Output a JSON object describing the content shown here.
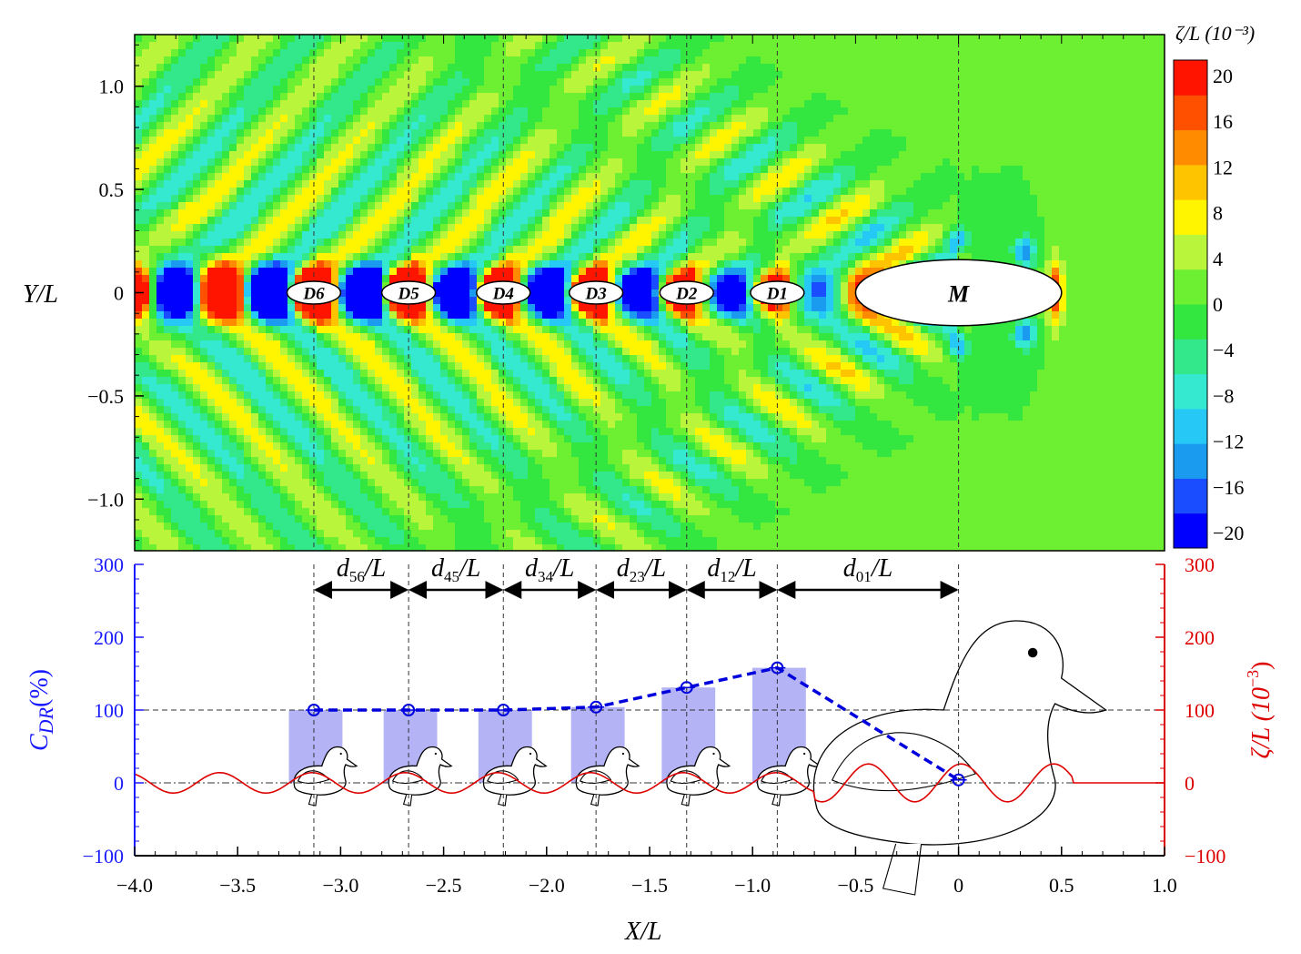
{
  "chart_data": [
    {
      "type": "heatmap",
      "title": "",
      "xlabel": "",
      "ylabel": "Y/L",
      "xlim": [
        -4.0,
        1.0
      ],
      "ylim": [
        -1.25,
        1.25
      ],
      "yticks": [
        1.0,
        0.5,
        0,
        -0.5,
        -1.0
      ],
      "ytick_labels": [
        "1.0",
        "0.5",
        "0",
        "−0.5",
        "−1.0"
      ],
      "colorbar": {
        "label": "ζ/L (10⁻³)",
        "range": [
          -20,
          20
        ],
        "levels": [
          20,
          16,
          12,
          8,
          4,
          0,
          -4,
          -8,
          -12,
          -16,
          -20
        ],
        "level_labels": [
          "20",
          "16",
          "12",
          "8",
          "4",
          "0",
          "−4",
          "−8",
          "−12",
          "−16",
          "−20"
        ],
        "colors": [
          "#0000ff",
          "#1a4dff",
          "#1a9bf0",
          "#26c8f5",
          "#35e8d0",
          "#33e88a",
          "#33e640",
          "#6ef032",
          "#b9f53a",
          "#fff500",
          "#ffc400",
          "#ff8c00",
          "#ff5000",
          "#ff1400"
        ]
      },
      "bodies": [
        {
          "label": "D6",
          "x": -3.13,
          "y": 0,
          "semi_x": 0.13,
          "semi_y": 0.055
        },
        {
          "label": "D5",
          "x": -2.67,
          "y": 0,
          "semi_x": 0.13,
          "semi_y": 0.055
        },
        {
          "label": "D4",
          "x": -2.21,
          "y": 0,
          "semi_x": 0.13,
          "semi_y": 0.055
        },
        {
          "label": "D3",
          "x": -1.76,
          "y": 0,
          "semi_x": 0.13,
          "semi_y": 0.055
        },
        {
          "label": "D2",
          "x": -1.32,
          "y": 0,
          "semi_x": 0.13,
          "semi_y": 0.055
        },
        {
          "label": "D1",
          "x": -0.88,
          "y": 0,
          "semi_x": 0.13,
          "semi_y": 0.055
        },
        {
          "label": "M",
          "x": 0,
          "y": 0,
          "semi_x": 0.5,
          "semi_y": 0.16
        }
      ]
    },
    {
      "type": "bar",
      "title": "",
      "xlabel": "X/L",
      "ylabel": "C_DR(%)",
      "ylabel_main": "C",
      "ylabel_sub": "DR",
      "ylabel_tail": "(%)",
      "y2label": "ζ/L (10⁻³)",
      "y2label_main": "ζ/L (10",
      "y2label_sup": "−3",
      "y2label_tail": ")",
      "xlim": [
        -4.0,
        1.0
      ],
      "ylim": [
        -100,
        300
      ],
      "y2lim": [
        -100,
        300
      ],
      "xticks": [
        -4.0,
        -3.5,
        -3.0,
        -2.5,
        -2.0,
        -1.5,
        -1.0,
        -0.5,
        0,
        0.5,
        1.0
      ],
      "xtick_labels": [
        "−4.0",
        "−3.5",
        "−3.0",
        "−2.5",
        "−2.0",
        "−1.5",
        "−1.0",
        "−0.5",
        "0",
        "0.5",
        "1.0"
      ],
      "yticks": [
        300,
        200,
        100,
        0,
        -100
      ],
      "ytick_labels": [
        "300",
        "200",
        "100",
        "0",
        "−100"
      ],
      "y2tick_labels": [
        "300",
        "200",
        "100",
        "0",
        "−100"
      ],
      "x": [
        -3.13,
        -2.67,
        -2.21,
        -1.76,
        -1.32,
        -0.88,
        0
      ],
      "categories": [
        "D6",
        "D5",
        "D4",
        "D3",
        "D2",
        "D1",
        "M"
      ],
      "series": [
        {
          "values": [
            100,
            100,
            100,
            104,
            131,
            158,
            4
          ]
        }
      ],
      "bar_color": "#b3b3f5",
      "line_color": "#0000dd",
      "wave_color": "#dd0000",
      "spacing_labels": [
        {
          "main": "d",
          "sub": "56",
          "tail": "/L",
          "from": -3.13,
          "to": -2.67
        },
        {
          "main": "d",
          "sub": "45",
          "tail": "/L",
          "from": -2.67,
          "to": -2.21
        },
        {
          "main": "d",
          "sub": "34",
          "tail": "/L",
          "from": -2.21,
          "to": -1.76
        },
        {
          "main": "d",
          "sub": "23",
          "tail": "/L",
          "from": -1.76,
          "to": -1.32
        },
        {
          "main": "d",
          "sub": "12",
          "tail": "/L",
          "from": -1.32,
          "to": -0.88
        },
        {
          "main": "d",
          "sub": "01",
          "tail": "/L",
          "from": -0.88,
          "to": 0
        }
      ],
      "reference_line_y": 100
    }
  ]
}
